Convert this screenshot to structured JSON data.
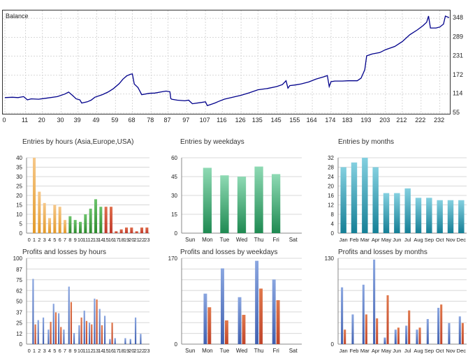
{
  "colors": {
    "balance_line": "#00008b",
    "asia": "#e39a2a",
    "europe": "#2e8b2e",
    "usa": "#c0392b",
    "weekdays_green": "#3aa874",
    "months_teal": "#23a0b8",
    "profit_blue": "#4060b0",
    "loss_red": "#c0442a",
    "grid": "#d8d8d8"
  },
  "chart_data": [
    {
      "id": "balance",
      "type": "line",
      "title": "Balance",
      "x_ticks": [
        "0",
        "11",
        "20",
        "30",
        "39",
        "49",
        "59",
        "68",
        "78",
        "87",
        "97",
        "107",
        "116",
        "126",
        "135",
        "145",
        "155",
        "164",
        "174",
        "183",
        "193",
        "203",
        "212",
        "222",
        "232"
      ],
      "y_ticks": [
        "55",
        "114",
        "172",
        "231",
        "289",
        "348"
      ],
      "xlim": [
        0,
        237
      ],
      "ylim": [
        55,
        370
      ],
      "x": [
        0,
        4,
        7,
        10,
        12,
        14,
        18,
        22,
        28,
        32,
        34,
        36,
        38,
        40,
        41,
        44,
        46,
        48,
        52,
        55,
        58,
        61,
        63,
        65,
        67,
        68,
        69,
        71,
        73,
        77,
        80,
        84,
        86,
        88,
        88.5,
        89,
        92,
        96,
        98,
        100,
        105,
        107,
        108,
        110,
        112,
        114,
        117,
        120,
        126,
        130,
        135,
        140,
        145,
        148,
        150,
        151,
        152,
        155,
        158,
        162,
        166,
        170,
        172,
        173,
        174,
        176,
        180,
        183,
        188,
        190,
        191,
        192,
        193,
        196,
        200,
        203,
        208,
        212,
        216,
        220,
        223,
        225,
        226,
        227,
        230,
        232,
        234,
        235,
        237
      ],
      "y": [
        103,
        104,
        103,
        106,
        96,
        99,
        98,
        101,
        106,
        114,
        120,
        110,
        99,
        96,
        86,
        90,
        95,
        104,
        112,
        120,
        131,
        146,
        160,
        170,
        175,
        176,
        145,
        134,
        112,
        116,
        117,
        121,
        123,
        121,
        100,
        98,
        95,
        93,
        95,
        84,
        88,
        90,
        78,
        82,
        86,
        91,
        98,
        102,
        110,
        117,
        127,
        131,
        137,
        143,
        155,
        132,
        140,
        142,
        145,
        151,
        160,
        167,
        171,
        137,
        152,
        154,
        154,
        155,
        155,
        163,
        176,
        189,
        232,
        238,
        242,
        251,
        261,
        276,
        297,
        312,
        325,
        336,
        355,
        318,
        318,
        321,
        330,
        355,
        350
      ]
    },
    {
      "id": "entries_hours",
      "type": "bar",
      "title": "Entries by hours (Asia,Europe,USA)",
      "categories": [
        "0",
        "1",
        "2",
        "3",
        "4",
        "5",
        "6",
        "7",
        "8",
        "9",
        "10",
        "11",
        "12",
        "13",
        "14",
        "15",
        "16",
        "17",
        "18",
        "19",
        "20",
        "21",
        "22",
        "23"
      ],
      "values": [
        0,
        40,
        22,
        16,
        8,
        15,
        14,
        7,
        9,
        7,
        6,
        10,
        13,
        18,
        14,
        14,
        14,
        1,
        2,
        3,
        3,
        1,
        3,
        3
      ],
      "segments": [
        "asia",
        "asia",
        "asia",
        "asia",
        "asia",
        "asia",
        "asia",
        "asia",
        "europe",
        "europe",
        "europe",
        "europe",
        "europe",
        "europe",
        "europe",
        "usa",
        "usa",
        "usa",
        "usa",
        "usa",
        "usa",
        "usa",
        "usa",
        "usa"
      ],
      "y_ticks": [
        "0",
        "5",
        "10",
        "15",
        "20",
        "25",
        "30",
        "35",
        "40"
      ],
      "ylim": [
        0,
        40
      ]
    },
    {
      "id": "entries_weekdays",
      "type": "bar",
      "title": "Entries by weekdays",
      "categories": [
        "Sun",
        "Mon",
        "Tue",
        "Wed",
        "Thu",
        "Fri",
        "Sat"
      ],
      "values": [
        0,
        52,
        46,
        45,
        53,
        47,
        0
      ],
      "y_ticks": [
        "0",
        "15",
        "30",
        "45",
        "60"
      ],
      "ylim": [
        0,
        60
      ]
    },
    {
      "id": "entries_months",
      "type": "bar",
      "title": "Entries by months",
      "categories": [
        "Jan",
        "Feb",
        "Mar",
        "Apr",
        "May",
        "Jun",
        "Jul",
        "Aug",
        "Sep",
        "Oct",
        "Nov",
        "Dec"
      ],
      "values": [
        28,
        30,
        32,
        28,
        17,
        17,
        19,
        15,
        15,
        14,
        14,
        14
      ],
      "y_ticks": [
        "0",
        "4",
        "8",
        "12",
        "16",
        "20",
        "24",
        "28",
        "32"
      ],
      "ylim": [
        0,
        32
      ]
    },
    {
      "id": "pl_hours",
      "type": "bar",
      "title": "Profits and losses by hours",
      "categories": [
        "0",
        "1",
        "2",
        "3",
        "4",
        "5",
        "6",
        "7",
        "8",
        "9",
        "10",
        "11",
        "12",
        "13",
        "14",
        "15",
        "16",
        "17",
        "18",
        "19",
        "20",
        "21",
        "22",
        "23"
      ],
      "series": [
        {
          "name": "profit",
          "values": [
            0,
            76,
            28,
            31,
            17,
            47,
            36,
            17,
            67,
            13,
            22,
            39,
            25,
            53,
            41,
            33,
            6,
            7,
            0,
            7,
            6,
            31,
            12,
            0
          ]
        },
        {
          "name": "loss",
          "values": [
            0,
            23,
            0,
            0,
            26,
            37,
            20,
            0,
            49,
            0,
            31,
            27,
            23,
            52,
            22,
            0,
            25,
            0,
            0,
            0,
            0,
            0,
            0,
            0
          ]
        }
      ],
      "y_ticks": [
        "0",
        "12",
        "25",
        "37",
        "50",
        "62",
        "75",
        "87",
        "100"
      ],
      "ylim": [
        0,
        100
      ]
    },
    {
      "id": "pl_weekdays",
      "type": "bar",
      "title": "Profits and losses by weekdays",
      "categories": [
        "Sun",
        "Mon",
        "Tue",
        "Wed",
        "Thu",
        "Fri",
        "Sat"
      ],
      "series": [
        {
          "name": "profit",
          "values": [
            0,
            100,
            150,
            93,
            165,
            128,
            0
          ]
        },
        {
          "name": "loss",
          "values": [
            0,
            73,
            47,
            58,
            110,
            87,
            0
          ]
        }
      ],
      "y_ticks": [
        "0",
        "170"
      ],
      "ylim": [
        0,
        170
      ]
    },
    {
      "id": "pl_months",
      "type": "bar",
      "title": "Profits and losses by months",
      "categories": [
        "Jan",
        "Feb",
        "Mar",
        "Apr",
        "May",
        "Jun",
        "Jul",
        "Aug",
        "Sep",
        "Oct",
        "Nov",
        "Dec"
      ],
      "series": [
        {
          "name": "profit",
          "values": [
            86,
            45,
            90,
            128,
            10,
            22,
            28,
            22,
            38,
            55,
            32,
            42
          ]
        },
        {
          "name": "loss",
          "values": [
            22,
            0,
            45,
            39,
            74,
            25,
            51,
            25,
            0,
            60,
            0,
            32
          ]
        }
      ],
      "y_ticks": [
        "0",
        "130"
      ],
      "ylim": [
        0,
        130
      ]
    }
  ]
}
